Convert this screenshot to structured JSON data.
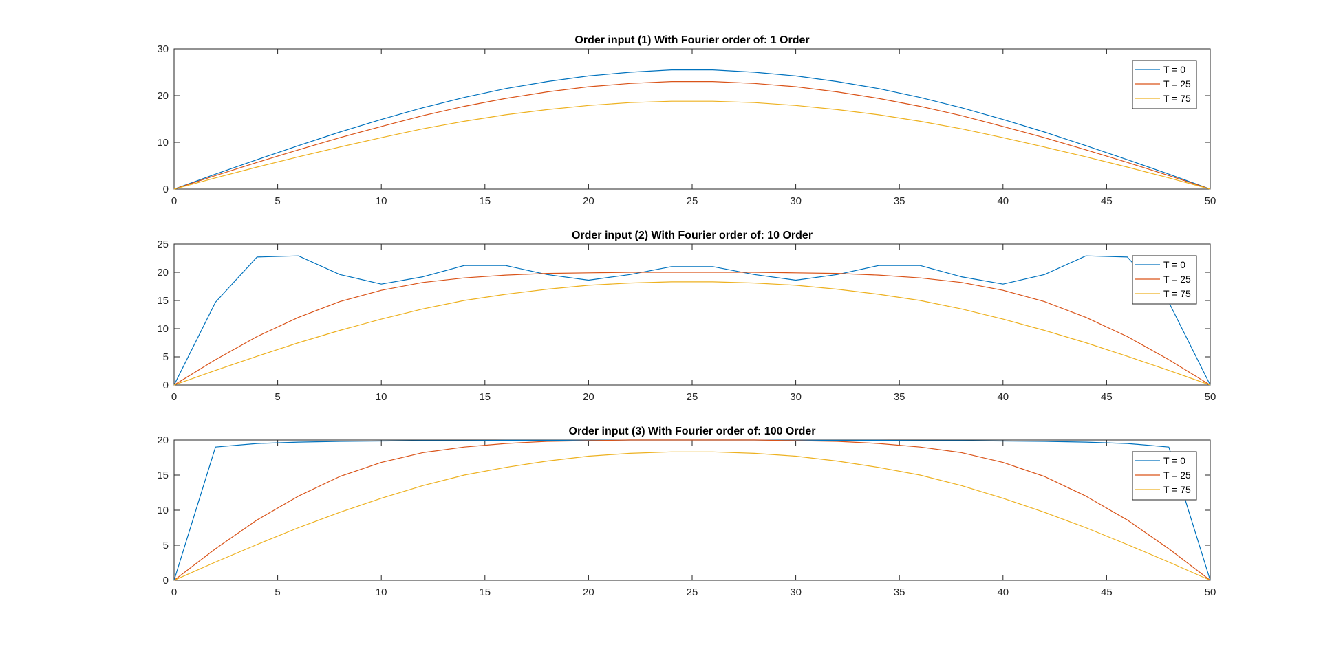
{
  "chart_data": [
    {
      "type": "line",
      "title": "Order input (1) With Fourier order of: 1 Order",
      "xlabel": "",
      "ylabel": "",
      "xlim": [
        0,
        50
      ],
      "ylim": [
        0,
        30
      ],
      "xticks": [
        0,
        5,
        10,
        15,
        20,
        25,
        30,
        35,
        40,
        45,
        50
      ],
      "yticks": [
        0,
        10,
        20,
        30
      ],
      "grid": false,
      "legend": "top-right",
      "x": [
        0,
        2,
        4,
        6,
        8,
        10,
        12,
        14,
        16,
        18,
        20,
        22,
        24,
        26,
        28,
        30,
        32,
        34,
        36,
        38,
        40,
        42,
        44,
        46,
        48,
        50
      ],
      "series": [
        {
          "name": "T = 0",
          "values": [
            0,
            3.2,
            6.3,
            9.3,
            12.2,
            14.9,
            17.4,
            19.6,
            21.5,
            23.0,
            24.2,
            25.0,
            25.5,
            25.5,
            25.0,
            24.2,
            23.0,
            21.5,
            19.6,
            17.4,
            14.9,
            12.2,
            9.3,
            6.3,
            3.2,
            0
          ]
        },
        {
          "name": "T = 25",
          "values": [
            0,
            2.9,
            5.7,
            8.4,
            11.0,
            13.4,
            15.7,
            17.7,
            19.4,
            20.8,
            21.9,
            22.6,
            23.0,
            23.0,
            22.6,
            21.9,
            20.8,
            19.4,
            17.7,
            15.7,
            13.4,
            11.0,
            8.4,
            5.7,
            2.9,
            0
          ]
        },
        {
          "name": "T = 75",
          "values": [
            0,
            2.4,
            4.7,
            6.9,
            9.0,
            11.0,
            12.9,
            14.5,
            15.9,
            17.0,
            17.9,
            18.5,
            18.8,
            18.8,
            18.5,
            17.9,
            17.0,
            15.9,
            14.5,
            12.9,
            11.0,
            9.0,
            6.9,
            4.7,
            2.4,
            0
          ]
        }
      ]
    },
    {
      "type": "line",
      "title": "Order input (2) With Fourier order of: 10 Order",
      "xlabel": "",
      "ylabel": "",
      "xlim": [
        0,
        50
      ],
      "ylim": [
        0,
        25
      ],
      "xticks": [
        0,
        5,
        10,
        15,
        20,
        25,
        30,
        35,
        40,
        45,
        50
      ],
      "yticks": [
        0,
        5,
        10,
        15,
        20,
        25
      ],
      "grid": false,
      "legend": "top-right",
      "x": [
        0,
        2,
        4,
        6,
        8,
        10,
        12,
        14,
        16,
        18,
        20,
        22,
        24,
        26,
        28,
        30,
        32,
        34,
        36,
        38,
        40,
        42,
        44,
        46,
        48,
        50
      ],
      "series": [
        {
          "name": "T = 0",
          "values": [
            0,
            14.7,
            22.7,
            22.9,
            19.6,
            17.9,
            19.2,
            21.2,
            21.2,
            19.6,
            18.6,
            19.6,
            21.0,
            21.0,
            19.6,
            18.6,
            19.6,
            21.2,
            21.2,
            19.2,
            17.9,
            19.6,
            22.9,
            22.7,
            14.7,
            0
          ]
        },
        {
          "name": "T = 25",
          "values": [
            0,
            4.5,
            8.6,
            12.0,
            14.8,
            16.8,
            18.2,
            19.0,
            19.5,
            19.8,
            19.9,
            20.0,
            20.0,
            20.0,
            20.0,
            19.9,
            19.8,
            19.5,
            19.0,
            18.2,
            16.8,
            14.8,
            12.0,
            8.6,
            4.5,
            0
          ]
        },
        {
          "name": "T = 75",
          "values": [
            0,
            2.6,
            5.1,
            7.5,
            9.7,
            11.7,
            13.5,
            15.0,
            16.1,
            17.0,
            17.7,
            18.1,
            18.3,
            18.3,
            18.1,
            17.7,
            17.0,
            16.1,
            15.0,
            13.5,
            11.7,
            9.7,
            7.5,
            5.1,
            2.6,
            0
          ]
        }
      ]
    },
    {
      "type": "line",
      "title": "Order input (3) With Fourier order of: 100 Order",
      "xlabel": "",
      "ylabel": "",
      "xlim": [
        0,
        50
      ],
      "ylim": [
        0,
        20
      ],
      "xticks": [
        0,
        5,
        10,
        15,
        20,
        25,
        30,
        35,
        40,
        45,
        50
      ],
      "yticks": [
        0,
        5,
        10,
        15,
        20
      ],
      "grid": false,
      "legend": "top-right",
      "x": [
        0,
        2,
        4,
        6,
        8,
        10,
        12,
        14,
        16,
        18,
        20,
        22,
        24,
        26,
        28,
        30,
        32,
        34,
        36,
        38,
        40,
        42,
        44,
        46,
        48,
        50
      ],
      "series": [
        {
          "name": "T = 0",
          "values": [
            0,
            19.0,
            19.5,
            19.7,
            19.8,
            19.85,
            19.9,
            19.9,
            19.95,
            19.95,
            19.95,
            20.0,
            20.0,
            20.0,
            20.0,
            19.95,
            19.95,
            19.95,
            19.9,
            19.9,
            19.85,
            19.8,
            19.7,
            19.5,
            19.0,
            0
          ]
        },
        {
          "name": "T = 25",
          "values": [
            0,
            4.5,
            8.6,
            12.0,
            14.8,
            16.8,
            18.2,
            19.0,
            19.5,
            19.8,
            19.9,
            20.0,
            20.0,
            20.0,
            20.0,
            19.9,
            19.8,
            19.5,
            19.0,
            18.2,
            16.8,
            14.8,
            12.0,
            8.6,
            4.5,
            0
          ]
        },
        {
          "name": "T = 75",
          "values": [
            0,
            2.6,
            5.1,
            7.5,
            9.7,
            11.7,
            13.5,
            15.0,
            16.1,
            17.0,
            17.7,
            18.1,
            18.3,
            18.3,
            18.1,
            17.7,
            17.0,
            16.1,
            15.0,
            13.5,
            11.7,
            9.7,
            7.5,
            5.1,
            2.6,
            0
          ]
        }
      ]
    }
  ],
  "colors": {
    "series": [
      "#0072BD",
      "#D95319",
      "#EDB120"
    ],
    "axis": "#262626",
    "background": "#ffffff"
  }
}
